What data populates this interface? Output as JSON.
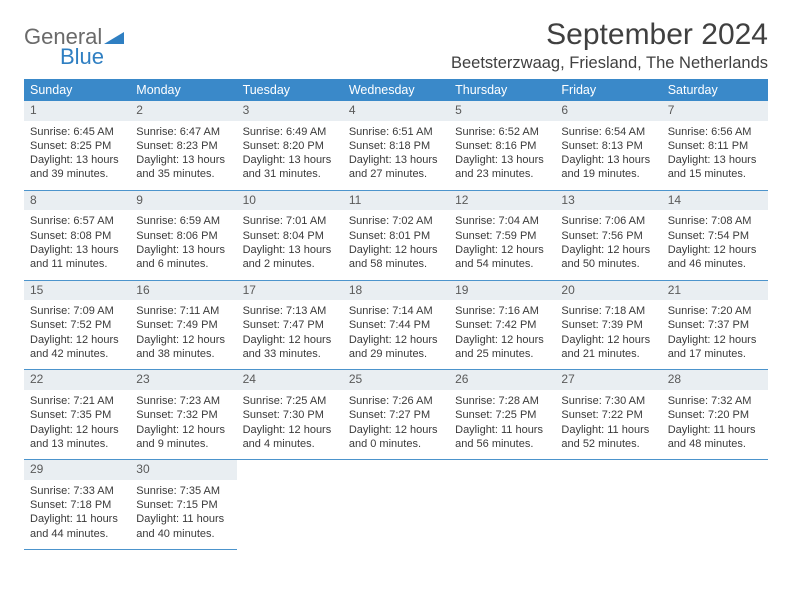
{
  "logo": {
    "general": "General",
    "blue": "Blue"
  },
  "title": "September 2024",
  "location": "Beetsterzwaag, Friesland, The Netherlands",
  "columns": [
    "Sunday",
    "Monday",
    "Tuesday",
    "Wednesday",
    "Thursday",
    "Friday",
    "Saturday"
  ],
  "colors": {
    "header_bg": "#3a89c9",
    "header_text": "#ffffff",
    "daynum_bg": "#e9eef2",
    "border": "#4c94cc",
    "logo_gray": "#6a6a6a",
    "logo_blue": "#2f7fc2"
  },
  "weeks": [
    [
      {
        "day": "1",
        "sunrise": "Sunrise: 6:45 AM",
        "sunset": "Sunset: 8:25 PM",
        "daylight": "Daylight: 13 hours and 39 minutes."
      },
      {
        "day": "2",
        "sunrise": "Sunrise: 6:47 AM",
        "sunset": "Sunset: 8:23 PM",
        "daylight": "Daylight: 13 hours and 35 minutes."
      },
      {
        "day": "3",
        "sunrise": "Sunrise: 6:49 AM",
        "sunset": "Sunset: 8:20 PM",
        "daylight": "Daylight: 13 hours and 31 minutes."
      },
      {
        "day": "4",
        "sunrise": "Sunrise: 6:51 AM",
        "sunset": "Sunset: 8:18 PM",
        "daylight": "Daylight: 13 hours and 27 minutes."
      },
      {
        "day": "5",
        "sunrise": "Sunrise: 6:52 AM",
        "sunset": "Sunset: 8:16 PM",
        "daylight": "Daylight: 13 hours and 23 minutes."
      },
      {
        "day": "6",
        "sunrise": "Sunrise: 6:54 AM",
        "sunset": "Sunset: 8:13 PM",
        "daylight": "Daylight: 13 hours and 19 minutes."
      },
      {
        "day": "7",
        "sunrise": "Sunrise: 6:56 AM",
        "sunset": "Sunset: 8:11 PM",
        "daylight": "Daylight: 13 hours and 15 minutes."
      }
    ],
    [
      {
        "day": "8",
        "sunrise": "Sunrise: 6:57 AM",
        "sunset": "Sunset: 8:08 PM",
        "daylight": "Daylight: 13 hours and 11 minutes."
      },
      {
        "day": "9",
        "sunrise": "Sunrise: 6:59 AM",
        "sunset": "Sunset: 8:06 PM",
        "daylight": "Daylight: 13 hours and 6 minutes."
      },
      {
        "day": "10",
        "sunrise": "Sunrise: 7:01 AM",
        "sunset": "Sunset: 8:04 PM",
        "daylight": "Daylight: 13 hours and 2 minutes."
      },
      {
        "day": "11",
        "sunrise": "Sunrise: 7:02 AM",
        "sunset": "Sunset: 8:01 PM",
        "daylight": "Daylight: 12 hours and 58 minutes."
      },
      {
        "day": "12",
        "sunrise": "Sunrise: 7:04 AM",
        "sunset": "Sunset: 7:59 PM",
        "daylight": "Daylight: 12 hours and 54 minutes."
      },
      {
        "day": "13",
        "sunrise": "Sunrise: 7:06 AM",
        "sunset": "Sunset: 7:56 PM",
        "daylight": "Daylight: 12 hours and 50 minutes."
      },
      {
        "day": "14",
        "sunrise": "Sunrise: 7:08 AM",
        "sunset": "Sunset: 7:54 PM",
        "daylight": "Daylight: 12 hours and 46 minutes."
      }
    ],
    [
      {
        "day": "15",
        "sunrise": "Sunrise: 7:09 AM",
        "sunset": "Sunset: 7:52 PM",
        "daylight": "Daylight: 12 hours and 42 minutes."
      },
      {
        "day": "16",
        "sunrise": "Sunrise: 7:11 AM",
        "sunset": "Sunset: 7:49 PM",
        "daylight": "Daylight: 12 hours and 38 minutes."
      },
      {
        "day": "17",
        "sunrise": "Sunrise: 7:13 AM",
        "sunset": "Sunset: 7:47 PM",
        "daylight": "Daylight: 12 hours and 33 minutes."
      },
      {
        "day": "18",
        "sunrise": "Sunrise: 7:14 AM",
        "sunset": "Sunset: 7:44 PM",
        "daylight": "Daylight: 12 hours and 29 minutes."
      },
      {
        "day": "19",
        "sunrise": "Sunrise: 7:16 AM",
        "sunset": "Sunset: 7:42 PM",
        "daylight": "Daylight: 12 hours and 25 minutes."
      },
      {
        "day": "20",
        "sunrise": "Sunrise: 7:18 AM",
        "sunset": "Sunset: 7:39 PM",
        "daylight": "Daylight: 12 hours and 21 minutes."
      },
      {
        "day": "21",
        "sunrise": "Sunrise: 7:20 AM",
        "sunset": "Sunset: 7:37 PM",
        "daylight": "Daylight: 12 hours and 17 minutes."
      }
    ],
    [
      {
        "day": "22",
        "sunrise": "Sunrise: 7:21 AM",
        "sunset": "Sunset: 7:35 PM",
        "daylight": "Daylight: 12 hours and 13 minutes."
      },
      {
        "day": "23",
        "sunrise": "Sunrise: 7:23 AM",
        "sunset": "Sunset: 7:32 PM",
        "daylight": "Daylight: 12 hours and 9 minutes."
      },
      {
        "day": "24",
        "sunrise": "Sunrise: 7:25 AM",
        "sunset": "Sunset: 7:30 PM",
        "daylight": "Daylight: 12 hours and 4 minutes."
      },
      {
        "day": "25",
        "sunrise": "Sunrise: 7:26 AM",
        "sunset": "Sunset: 7:27 PM",
        "daylight": "Daylight: 12 hours and 0 minutes."
      },
      {
        "day": "26",
        "sunrise": "Sunrise: 7:28 AM",
        "sunset": "Sunset: 7:25 PM",
        "daylight": "Daylight: 11 hours and 56 minutes."
      },
      {
        "day": "27",
        "sunrise": "Sunrise: 7:30 AM",
        "sunset": "Sunset: 7:22 PM",
        "daylight": "Daylight: 11 hours and 52 minutes."
      },
      {
        "day": "28",
        "sunrise": "Sunrise: 7:32 AM",
        "sunset": "Sunset: 7:20 PM",
        "daylight": "Daylight: 11 hours and 48 minutes."
      }
    ],
    [
      {
        "day": "29",
        "sunrise": "Sunrise: 7:33 AM",
        "sunset": "Sunset: 7:18 PM",
        "daylight": "Daylight: 11 hours and 44 minutes."
      },
      {
        "day": "30",
        "sunrise": "Sunrise: 7:35 AM",
        "sunset": "Sunset: 7:15 PM",
        "daylight": "Daylight: 11 hours and 40 minutes."
      },
      null,
      null,
      null,
      null,
      null
    ]
  ]
}
